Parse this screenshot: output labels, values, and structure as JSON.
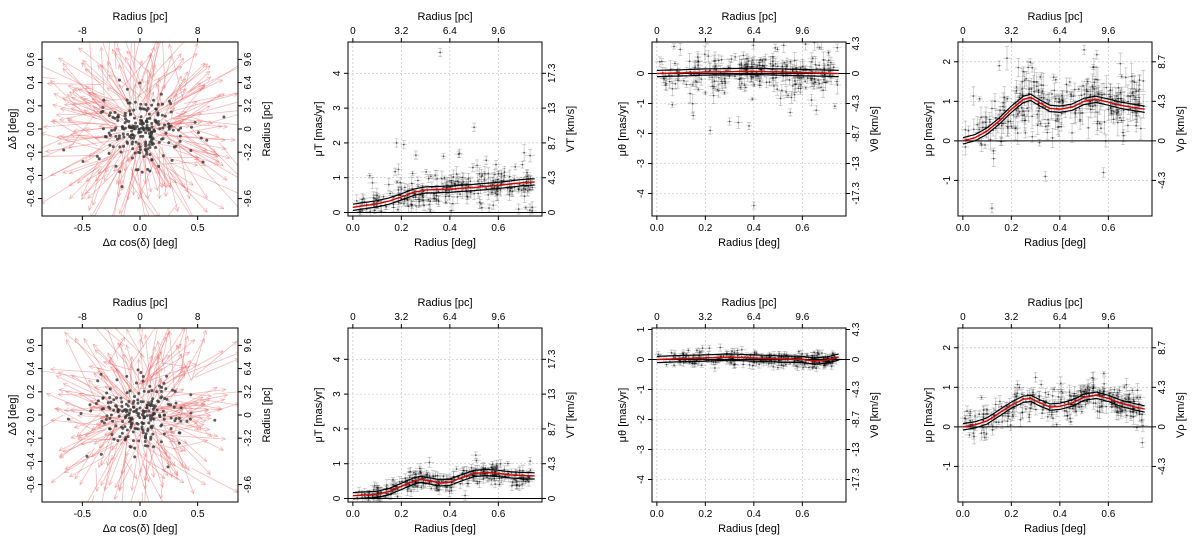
{
  "chart_data": [
    {
      "id": "top-1",
      "type": "scatter",
      "kind": "vector",
      "xlabel": "Δα cos(δ) [deg]",
      "ylabel": "Δδ [deg]",
      "top_label": "Radius [pc]",
      "right_label": "Radius [pc]",
      "xlim": [
        -0.85,
        0.85
      ],
      "ylim": [
        -0.75,
        0.75
      ],
      "xticks": [
        "-0.5",
        "0.0",
        "0.5"
      ],
      "xtick_values": [
        -0.5,
        0.0,
        0.5
      ],
      "yticks": [
        "-0.6",
        "-0.4",
        "-0.2",
        "0.0",
        "0.2",
        "0.4",
        "0.6"
      ],
      "ytick_values": [
        -0.6,
        -0.4,
        -0.2,
        0.0,
        0.2,
        0.4,
        0.6
      ],
      "top_ticks": [
        "-8",
        "0",
        "8"
      ],
      "top_tick_values": [
        -0.5,
        0.0,
        0.5
      ],
      "right_ticks": [
        "-9.6",
        "-3.2",
        "0",
        "3.2",
        "6.4",
        "9.6"
      ],
      "right_tick_values": [
        -0.6,
        -0.2,
        0.0,
        0.2,
        0.4,
        0.6
      ],
      "vector_scale": 0.45
    },
    {
      "id": "top-2",
      "type": "scatter",
      "kind": "profile",
      "xlabel": "Radius [deg]",
      "ylabel": "μT [mas/yr]",
      "top_label": "Radius [pc]",
      "right_label": "VT [km/s]",
      "xlim": [
        -0.02,
        0.78
      ],
      "ylim": [
        -0.1,
        4.9
      ],
      "xticks": [
        "0.0",
        "0.2",
        "0.4",
        "0.6"
      ],
      "xtick_values": [
        0.0,
        0.2,
        0.4,
        0.6
      ],
      "yticks": [
        "0",
        "1",
        "2",
        "3",
        "4"
      ],
      "ytick_values": [
        0,
        1,
        2,
        3,
        4
      ],
      "top_ticks": [
        "0",
        "3.2",
        "6.4",
        "9.6"
      ],
      "top_tick_values": [
        0.0,
        0.2,
        0.4,
        0.6
      ],
      "right_ticks": [
        "0",
        "4.3",
        "8.7",
        "13",
        "17.3"
      ],
      "right_tick_values": [
        0,
        1,
        2,
        3,
        4
      ],
      "curve": {
        "x": [
          0.0,
          0.05,
          0.1,
          0.15,
          0.2,
          0.25,
          0.3,
          0.35,
          0.4,
          0.45,
          0.5,
          0.55,
          0.6,
          0.65,
          0.7,
          0.75
        ],
        "y": [
          0.15,
          0.2,
          0.25,
          0.33,
          0.45,
          0.58,
          0.65,
          0.66,
          0.67,
          0.7,
          0.72,
          0.75,
          0.78,
          0.82,
          0.86,
          0.88
        ]
      },
      "scatter_sd": 0.28,
      "point_count": 260,
      "seed": 11,
      "min_y": 0.02,
      "outliers": [
        [
          0.36,
          4.6
        ],
        [
          0.5,
          2.45
        ],
        [
          0.18,
          2.0
        ],
        [
          0.21,
          1.95
        ],
        [
          0.44,
          1.7
        ],
        [
          0.55,
          1.5
        ],
        [
          0.26,
          1.65
        ]
      ]
    },
    {
      "id": "top-3",
      "type": "scatter",
      "kind": "profile",
      "xlabel": "Radius [deg]",
      "ylabel": "μθ [mas/yr]",
      "top_label": "Radius [pc]",
      "right_label": "Vθ [km/s]",
      "xlim": [
        -0.02,
        0.78
      ],
      "ylim": [
        -4.75,
        1.05
      ],
      "xticks": [
        "0.0",
        "0.2",
        "0.4",
        "0.6"
      ],
      "xtick_values": [
        0.0,
        0.2,
        0.4,
        0.6
      ],
      "yticks": [
        "-4",
        "-3",
        "-2",
        "-1",
        "0"
      ],
      "ytick_values": [
        -4,
        -3,
        -2,
        -1,
        0
      ],
      "top_ticks": [
        "0",
        "3.2",
        "6.4",
        "9.6"
      ],
      "top_tick_values": [
        0.0,
        0.2,
        0.4,
        0.6
      ],
      "right_ticks": [
        "-17.3",
        "-13",
        "-8.7",
        "-4.3",
        "0",
        "4.3"
      ],
      "right_tick_values": [
        -4,
        -3,
        -2,
        -1,
        0,
        1
      ],
      "curve": {
        "x": [
          0.0,
          0.1,
          0.2,
          0.3,
          0.4,
          0.5,
          0.6,
          0.7,
          0.75
        ],
        "y": [
          0.0,
          0.02,
          0.05,
          0.06,
          0.07,
          0.05,
          0.03,
          0.01,
          0.0
        ]
      },
      "scatter_sd": 0.38,
      "point_count": 280,
      "seed": 23,
      "min_y": -10,
      "outliers": [
        [
          0.4,
          -4.4
        ],
        [
          0.38,
          -1.75
        ],
        [
          0.22,
          -1.9
        ],
        [
          0.15,
          -1.4
        ],
        [
          0.3,
          -1.6
        ],
        [
          0.55,
          -1.3
        ]
      ]
    },
    {
      "id": "top-4",
      "type": "scatter",
      "kind": "profile",
      "xlabel": "Radius [deg]",
      "ylabel": "μρ [mas/yr]",
      "top_label": "Radius [pc]",
      "right_label": "Vρ [km/s]",
      "xlim": [
        -0.02,
        0.78
      ],
      "ylim": [
        -1.9,
        2.5
      ],
      "xticks": [
        "0.0",
        "0.2",
        "0.4",
        "0.6"
      ],
      "xtick_values": [
        0.0,
        0.2,
        0.4,
        0.6
      ],
      "yticks": [
        "-1",
        "0",
        "1",
        "2"
      ],
      "ytick_values": [
        -1,
        0,
        1,
        2
      ],
      "top_ticks": [
        "0",
        "3.2",
        "6.4",
        "9.6"
      ],
      "top_tick_values": [
        0.0,
        0.2,
        0.4,
        0.6
      ],
      "right_ticks": [
        "-4.3",
        "0",
        "4.3",
        "8.7"
      ],
      "right_tick_values": [
        -1,
        0,
        1,
        2
      ],
      "curve": {
        "x": [
          0.0,
          0.05,
          0.1,
          0.15,
          0.2,
          0.25,
          0.28,
          0.32,
          0.36,
          0.4,
          0.45,
          0.5,
          0.55,
          0.6,
          0.65,
          0.7,
          0.75
        ],
        "y": [
          0.0,
          0.08,
          0.25,
          0.5,
          0.8,
          1.05,
          1.1,
          0.95,
          0.82,
          0.8,
          0.85,
          1.0,
          1.05,
          0.98,
          0.9,
          0.85,
          0.8
        ]
      },
      "scatter_sd": 0.42,
      "point_count": 280,
      "seed": 37,
      "min_y": -10,
      "outliers": [
        [
          0.5,
          2.3
        ],
        [
          0.15,
          1.9
        ],
        [
          0.25,
          1.75
        ],
        [
          0.12,
          -1.7
        ],
        [
          0.34,
          -0.9
        ],
        [
          0.58,
          -0.8
        ]
      ]
    },
    {
      "id": "bot-1",
      "type": "scatter",
      "kind": "vector",
      "xlabel": "Δα cos(δ) [deg]",
      "ylabel": "Δδ [deg]",
      "top_label": "Radius [pc]",
      "right_label": "Radius [pc]",
      "xlim": [
        -0.85,
        0.85
      ],
      "ylim": [
        -0.75,
        0.75
      ],
      "xticks": [
        "-0.5",
        "0.0",
        "0.5"
      ],
      "xtick_values": [
        -0.5,
        0.0,
        0.5
      ],
      "yticks": [
        "-0.6",
        "-0.4",
        "-0.2",
        "0.0",
        "0.2",
        "0.4",
        "0.6"
      ],
      "ytick_values": [
        -0.6,
        -0.4,
        -0.2,
        0.0,
        0.2,
        0.4,
        0.6
      ],
      "top_ticks": [
        "-8",
        "0",
        "8"
      ],
      "top_tick_values": [
        -0.5,
        0.0,
        0.5
      ],
      "right_ticks": [
        "-9.6",
        "-3.2",
        "0",
        "3.2",
        "6.4",
        "9.6"
      ],
      "right_tick_values": [
        -0.6,
        -0.2,
        0.0,
        0.2,
        0.4,
        0.6
      ],
      "vector_scale": 0.4
    },
    {
      "id": "bot-2",
      "type": "scatter",
      "kind": "profile",
      "xlabel": "Radius [deg]",
      "ylabel": "μT [mas/yr]",
      "top_label": "Radius [pc]",
      "right_label": "VT [km/s]",
      "xlim": [
        -0.02,
        0.78
      ],
      "ylim": [
        -0.1,
        4.9
      ],
      "xticks": [
        "0.0",
        "0.2",
        "0.4",
        "0.6"
      ],
      "xtick_values": [
        0.0,
        0.2,
        0.4,
        0.6
      ],
      "yticks": [
        "0",
        "1",
        "2",
        "3",
        "4"
      ],
      "ytick_values": [
        0,
        1,
        2,
        3,
        4
      ],
      "top_ticks": [
        "0",
        "3.2",
        "6.4",
        "9.6"
      ],
      "top_tick_values": [
        0.0,
        0.2,
        0.4,
        0.6
      ],
      "right_ticks": [
        "0",
        "4.3",
        "8.7",
        "13",
        "17.3"
      ],
      "right_tick_values": [
        0,
        1,
        2,
        3,
        4
      ],
      "curve": {
        "x": [
          0.0,
          0.05,
          0.1,
          0.15,
          0.2,
          0.25,
          0.28,
          0.32,
          0.36,
          0.4,
          0.45,
          0.5,
          0.55,
          0.6,
          0.65,
          0.7,
          0.75
        ],
        "y": [
          0.08,
          0.1,
          0.12,
          0.2,
          0.35,
          0.5,
          0.55,
          0.5,
          0.45,
          0.47,
          0.6,
          0.72,
          0.75,
          0.72,
          0.68,
          0.66,
          0.65
        ]
      },
      "scatter_sd": 0.17,
      "point_count": 280,
      "seed": 53,
      "min_y": 0.01,
      "outliers": []
    },
    {
      "id": "bot-3",
      "type": "scatter",
      "kind": "profile",
      "xlabel": "Radius [deg]",
      "ylabel": "μθ [mas/yr]",
      "top_label": "Radius [pc]",
      "right_label": "Vθ [km/s]",
      "xlim": [
        -0.02,
        0.78
      ],
      "ylim": [
        -4.75,
        1.05
      ],
      "xticks": [
        "0.0",
        "0.2",
        "0.4",
        "0.6"
      ],
      "xtick_values": [
        0.0,
        0.2,
        0.4,
        0.6
      ],
      "yticks": [
        "-4",
        "-3",
        "-2",
        "-1",
        "0",
        "1"
      ],
      "ytick_values": [
        -4,
        -3,
        -2,
        -1,
        0,
        1
      ],
      "top_ticks": [
        "0",
        "3.2",
        "6.4",
        "9.6"
      ],
      "top_tick_values": [
        0.0,
        0.2,
        0.4,
        0.6
      ],
      "right_ticks": [
        "-17.3",
        "-13",
        "-8.7",
        "-4.3",
        "0",
        "4.3"
      ],
      "right_tick_values": [
        -4,
        -3,
        -2,
        -1,
        0,
        1
      ],
      "curve": {
        "x": [
          0.0,
          0.1,
          0.2,
          0.3,
          0.4,
          0.5,
          0.6,
          0.65,
          0.7,
          0.75
        ],
        "y": [
          0.0,
          0.03,
          0.05,
          0.08,
          0.05,
          0.02,
          0.0,
          -0.05,
          -0.02,
          0.08
        ]
      },
      "scatter_sd": 0.13,
      "point_count": 280,
      "seed": 71,
      "min_y": -10,
      "outliers": []
    },
    {
      "id": "bot-4",
      "type": "scatter",
      "kind": "profile",
      "xlabel": "Radius [deg]",
      "ylabel": "μρ [mas/yr]",
      "top_label": "Radius [pc]",
      "right_label": "Vρ [km/s]",
      "xlim": [
        -0.02,
        0.78
      ],
      "ylim": [
        -1.9,
        2.5
      ],
      "xticks": [
        "0.0",
        "0.2",
        "0.4",
        "0.6"
      ],
      "xtick_values": [
        0.0,
        0.2,
        0.4,
        0.6
      ],
      "yticks": [
        "-1",
        "0",
        "1",
        "2"
      ],
      "ytick_values": [
        -1,
        0,
        1,
        2
      ],
      "top_ticks": [
        "0",
        "3.2",
        "6.4",
        "9.6"
      ],
      "top_tick_values": [
        0.0,
        0.2,
        0.4,
        0.6
      ],
      "right_ticks": [
        "-4.3",
        "0",
        "4.3",
        "8.7"
      ],
      "right_tick_values": [
        -1,
        0,
        1,
        2
      ],
      "curve": {
        "x": [
          0.0,
          0.05,
          0.1,
          0.15,
          0.2,
          0.25,
          0.28,
          0.32,
          0.36,
          0.4,
          0.45,
          0.5,
          0.55,
          0.6,
          0.65,
          0.7,
          0.75
        ],
        "y": [
          0.0,
          0.05,
          0.15,
          0.35,
          0.55,
          0.7,
          0.72,
          0.6,
          0.5,
          0.52,
          0.6,
          0.75,
          0.8,
          0.72,
          0.6,
          0.52,
          0.45
        ]
      },
      "scatter_sd": 0.22,
      "point_count": 280,
      "seed": 89,
      "min_y": -10,
      "outliers": [
        [
          0.74,
          -0.4
        ],
        [
          0.3,
          1.25
        ]
      ]
    }
  ]
}
